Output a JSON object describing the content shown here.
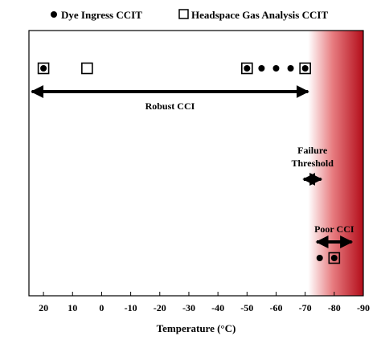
{
  "chart_data": {
    "type": "scatter",
    "legend": {
      "placement": "top",
      "items": [
        {
          "label": "Dye Ingress CCIT",
          "marker": "filled-circle"
        },
        {
          "label": "Headspace Gas Analysis CCIT",
          "marker": "open-square"
        }
      ]
    },
    "xlabel": "Temperature (°C)",
    "ylabel": "",
    "xlim": [
      25,
      -90
    ],
    "x_reversed": true,
    "x_ticks": [
      20,
      10,
      0,
      -10,
      -20,
      -30,
      -40,
      -50,
      -60,
      -70,
      -80,
      -90
    ],
    "x_tick_labels": [
      "20",
      "10",
      "0",
      "-10",
      "-20",
      "-30",
      "-40",
      "-50",
      "-60",
      "-70",
      "-80",
      "-90"
    ],
    "failure_region": {
      "start": -71,
      "end": -90,
      "color": "#c8101e"
    },
    "series": [
      {
        "name": "Dye Ingress CCIT",
        "marker": "filled-circle",
        "points": [
          {
            "x": 20,
            "level": "upper"
          },
          {
            "x": -50,
            "level": "upper"
          },
          {
            "x": -55,
            "level": "upper"
          },
          {
            "x": -60,
            "level": "upper"
          },
          {
            "x": -65,
            "level": "upper"
          },
          {
            "x": -70,
            "level": "upper"
          },
          {
            "x": -75,
            "level": "lower"
          },
          {
            "x": -80,
            "level": "lower"
          }
        ]
      },
      {
        "name": "Headspace Gas Analysis CCIT",
        "marker": "open-square",
        "points": [
          {
            "x": 20,
            "level": "upper"
          },
          {
            "x": 5,
            "level": "upper"
          },
          {
            "x": -50,
            "level": "upper"
          },
          {
            "x": -70,
            "level": "upper"
          },
          {
            "x": -80,
            "level": "lower"
          }
        ]
      }
    ],
    "annotations": [
      {
        "text": "Robust CCI",
        "from": 24,
        "to": -71,
        "kind": "double-arrow"
      },
      {
        "text": "Failure",
        "text2": "Threshold",
        "from": -69.5,
        "to": -75.5,
        "kind": "double-arrow"
      },
      {
        "text": "Poor CCI",
        "from": -74,
        "to": -86,
        "kind": "double-arrow"
      }
    ]
  }
}
